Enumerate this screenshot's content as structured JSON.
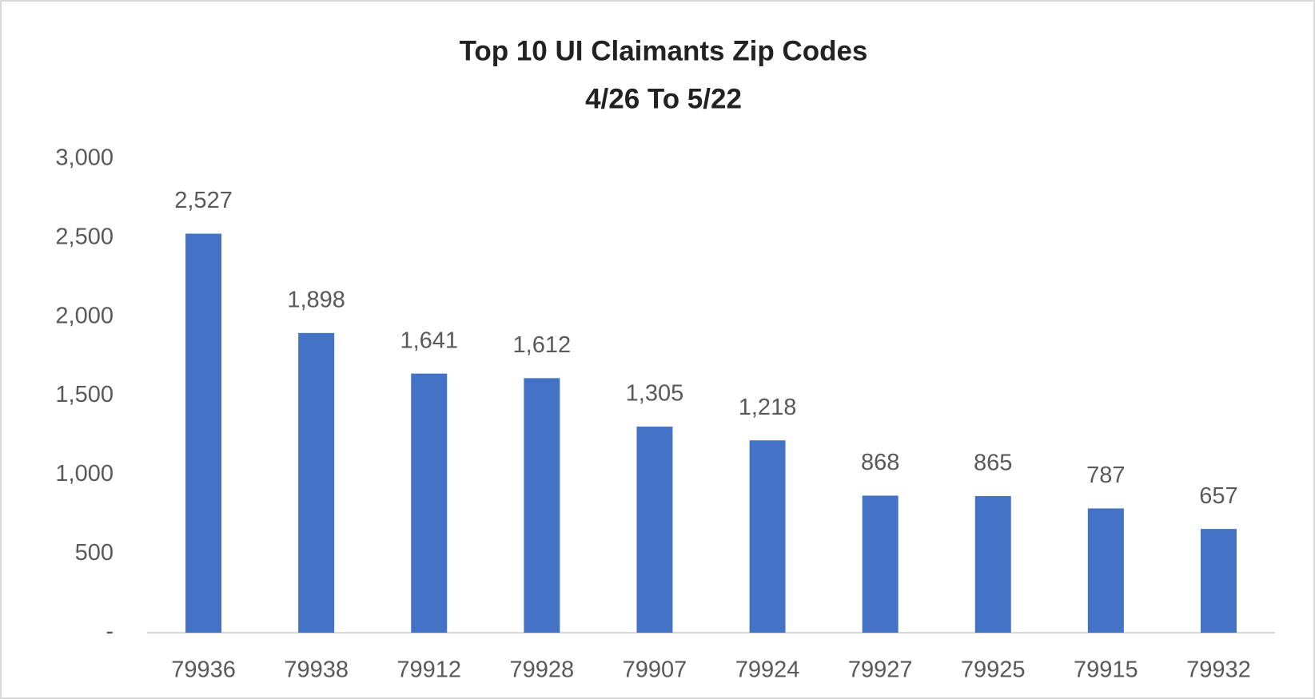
{
  "chart_data": {
    "type": "bar",
    "title": "Top 10 UI Claimants Zip Codes",
    "subtitle": "4/26 To 5/22",
    "categories": [
      "79936",
      "79938",
      "79912",
      "79928",
      "79907",
      "79924",
      "79927",
      "79925",
      "79915",
      "79932"
    ],
    "values": [
      2527,
      1898,
      1641,
      1612,
      1305,
      1218,
      868,
      865,
      787,
      657
    ],
    "value_labels": [
      "2,527",
      "1,898",
      "1,641",
      "1,612",
      "1,305",
      "1,218",
      "868",
      "865",
      "787",
      "657"
    ],
    "color": "#4472c4",
    "ylim": [
      0,
      3000
    ],
    "yticks": [
      {
        "value": 0,
        "label": "-"
      },
      500,
      {
        "value": 1000,
        "label": "1,000"
      },
      {
        "value": 1500,
        "label": "1,500"
      },
      {
        "value": 2000,
        "label": "2,000"
      },
      {
        "value": 2500,
        "label": "2,500"
      },
      {
        "value": 3000,
        "label": "3,000"
      }
    ],
    "grid": false
  }
}
